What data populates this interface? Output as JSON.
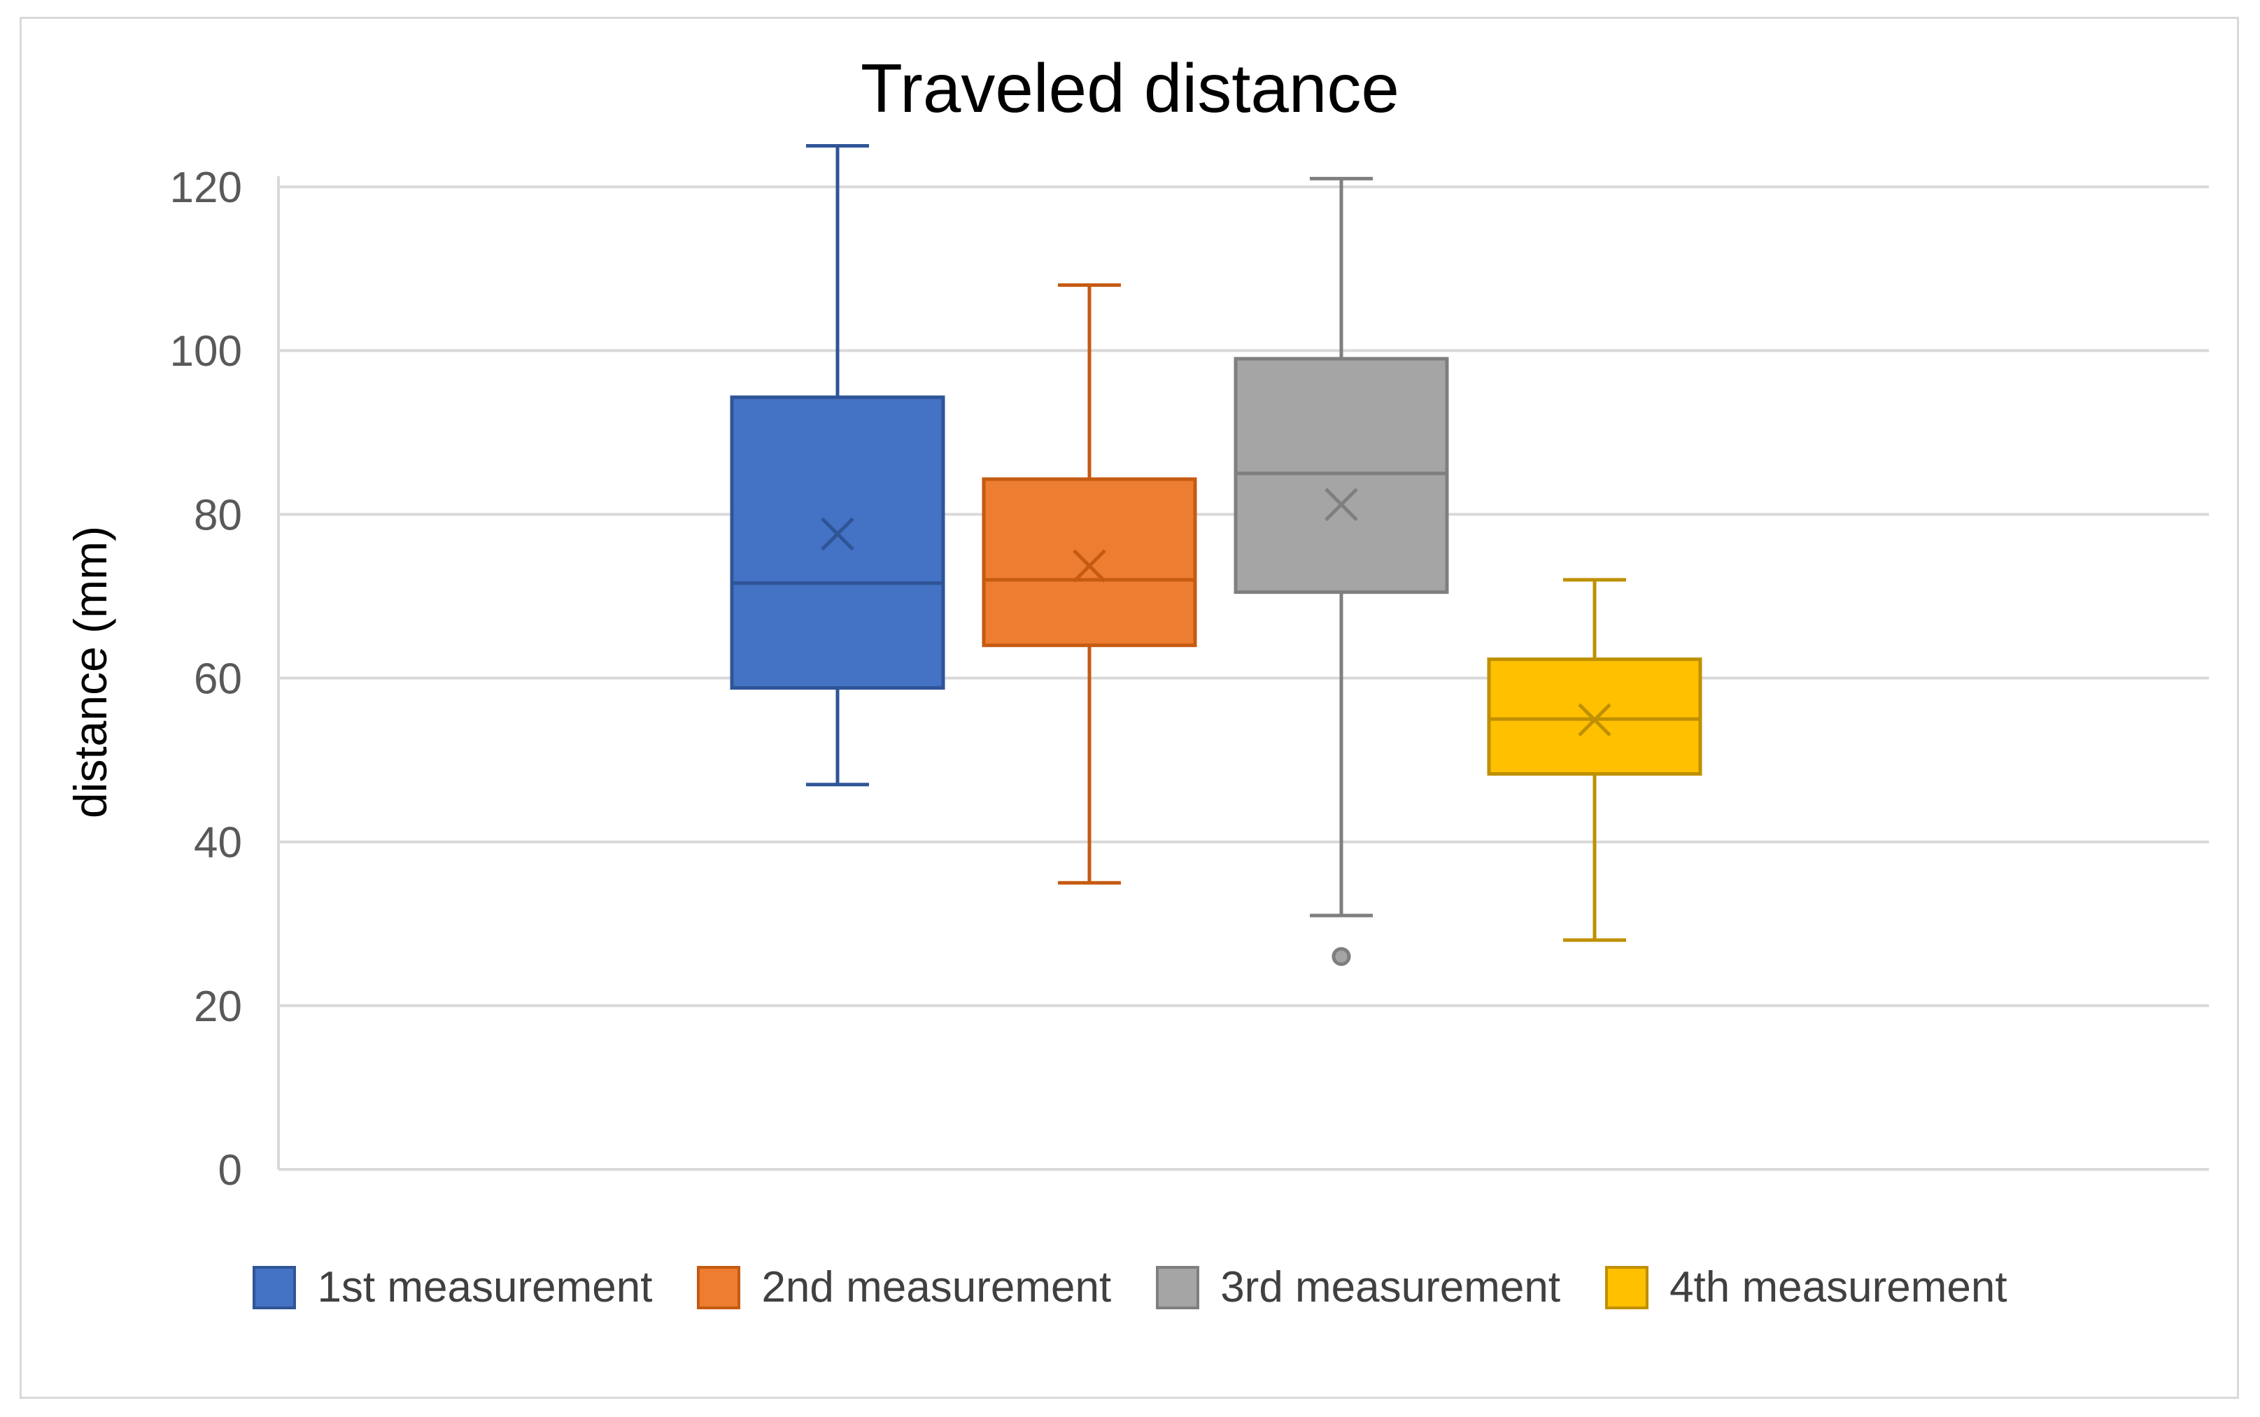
{
  "chart_data": {
    "type": "box",
    "title": "Traveled distance",
    "xlabel": "",
    "ylabel": "distance (mm)",
    "ylim": [
      0,
      130
    ],
    "yticks": [
      0,
      20,
      40,
      60,
      80,
      100,
      120
    ],
    "grid": true,
    "legend_position": "bottom",
    "series": [
      {
        "name": "1st measurement",
        "color": "#4472c4",
        "edge": "#2f5597",
        "min": 47,
        "q1": 58.8,
        "median": 71.6,
        "q3": 94.3,
        "max": 125,
        "mean": 77.6,
        "outliers": []
      },
      {
        "name": "2nd measurement",
        "color": "#ed7d31",
        "edge": "#c55a11",
        "min": 35,
        "q1": 64,
        "median": 72,
        "q3": 84.3,
        "max": 108,
        "mean": 73.7,
        "outliers": []
      },
      {
        "name": "3rd measurement",
        "color": "#a5a5a5",
        "edge": "#7f7f7f",
        "min": 31,
        "q1": 70.5,
        "median": 85,
        "q3": 99,
        "max": 121,
        "mean": 81.2,
        "outliers": [
          26
        ]
      },
      {
        "name": "4th measurement",
        "color": "#ffc000",
        "edge": "#bf9000",
        "min": 28,
        "q1": 48.3,
        "median": 55,
        "q3": 62.3,
        "max": 72,
        "mean": 54.9,
        "outliers": []
      }
    ]
  }
}
